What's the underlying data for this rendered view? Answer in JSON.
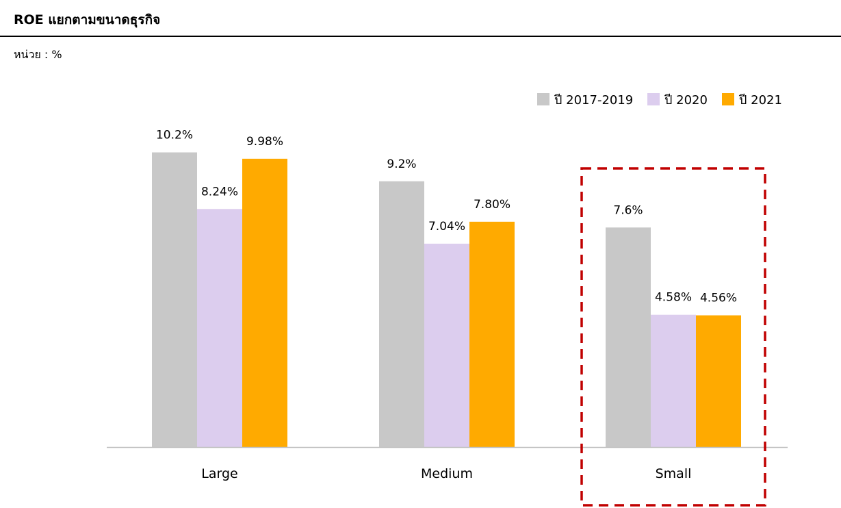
{
  "header": {
    "title": "ROE แยกตามขนาดธุรกิจ",
    "unit": "หน่วย : %"
  },
  "chart_data": {
    "type": "bar",
    "categories": [
      "Large",
      "Medium",
      "Small"
    ],
    "series": [
      {
        "name": "ปี 2017-2019",
        "color": "#c8c8c8",
        "values": [
          10.2,
          9.2,
          7.6
        ],
        "labels": [
          "10.2%",
          "9.2%",
          "7.6%"
        ]
      },
      {
        "name": "ปี 2020",
        "color": "#dccdee",
        "values": [
          8.24,
          7.04,
          4.58
        ],
        "labels": [
          "8.24%",
          "7.04%",
          "4.58%"
        ]
      },
      {
        "name": "ปี 2021",
        "color": "#ffaa00",
        "values": [
          9.98,
          7.8,
          4.56
        ],
        "labels": [
          "9.98%",
          "7.80%",
          "4.56%"
        ]
      }
    ],
    "ylim": [
      0,
      11
    ],
    "legend_position": "top-right",
    "highlight": {
      "category": "Small",
      "style": "dashed",
      "color": "#c00000"
    }
  }
}
